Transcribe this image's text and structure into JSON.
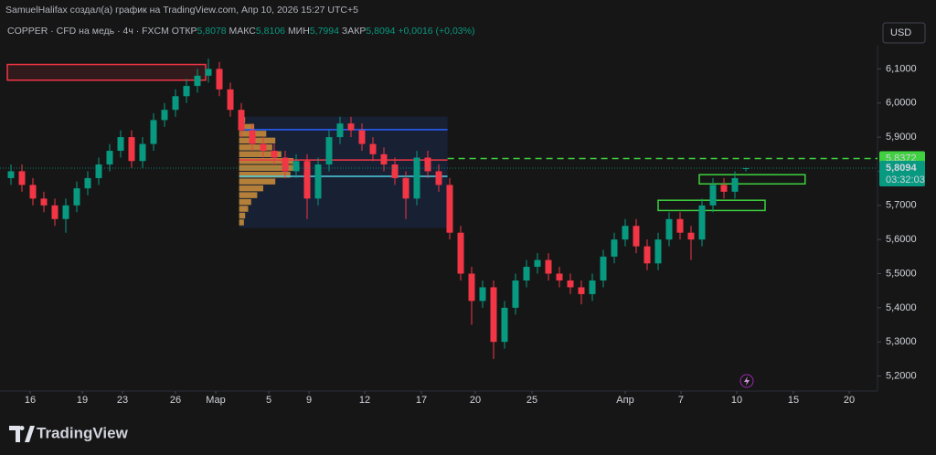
{
  "header": {
    "attribution": "SamuelHalifax создал(а) график на TradingView.com, Апр 10, 2026 15:27 UTC+5",
    "symbol": "COPPER · CFD на медь · 4ч · FXCM",
    "open_label": "ОТКР",
    "open": "5,8078",
    "high_label": "МАКС",
    "high": "5,8106",
    "low_label": "МИН",
    "low": "5,7994",
    "close_label": "ЗАКР",
    "close": "5,8094",
    "change": "+0,0016 (+0,03%)"
  },
  "currency": "USD",
  "brand": "TradingView",
  "chart_data": {
    "type": "candlestick",
    "xlim": [
      0,
      80
    ],
    "xticks": [
      {
        "value": 2.75,
        "label": "16"
      },
      {
        "value": 7.5,
        "label": "19"
      },
      {
        "value": 11.17,
        "label": "23"
      },
      {
        "value": 16,
        "label": "26"
      },
      {
        "value": 19.67,
        "label": "Мар"
      },
      {
        "value": 24.5,
        "label": "5"
      },
      {
        "value": 28.17,
        "label": "9"
      },
      {
        "value": 33.25,
        "label": "12"
      },
      {
        "value": 38.42,
        "label": "17"
      },
      {
        "value": 43.33,
        "label": "20"
      },
      {
        "value": 48.5,
        "label": "25"
      },
      {
        "value": 57,
        "label": "Апр"
      },
      {
        "value": 62.08,
        "label": "7"
      },
      {
        "value": 67.17,
        "label": "10"
      },
      {
        "value": 72.33,
        "label": "15"
      },
      {
        "value": 77.42,
        "label": "20"
      }
    ],
    "ylim": [
      5.156,
      6.168
    ],
    "yticks": [
      {
        "value": 5.2,
        "label": "5,2000"
      },
      {
        "value": 5.3,
        "label": "5,3000"
      },
      {
        "value": 5.4,
        "label": "5,4000"
      },
      {
        "value": 5.5,
        "label": "5,5000"
      },
      {
        "value": 5.6,
        "label": "5,6000"
      },
      {
        "value": 5.7,
        "label": "5,7000"
      },
      {
        "value": 5.8,
        "label": "5,8000"
      },
      {
        "value": 5.9,
        "label": "5,9000"
      },
      {
        "value": 6.0,
        "label": "6,0000"
      },
      {
        "value": 6.1,
        "label": "6,1000"
      }
    ],
    "x": [
      1,
      2,
      3,
      4,
      5,
      6,
      7,
      8,
      9,
      10,
      11,
      12,
      13,
      14,
      15,
      16,
      17,
      18,
      19,
      20,
      21,
      22,
      23,
      24,
      25,
      26,
      27,
      28,
      29,
      30,
      31,
      32,
      33,
      34,
      35,
      36,
      37,
      38,
      39,
      40,
      41,
      42,
      43,
      44,
      45,
      46,
      47,
      48,
      49,
      50,
      51,
      52,
      53,
      54,
      55,
      56,
      57,
      58,
      59,
      60,
      61,
      62,
      63,
      64,
      65,
      66,
      67,
      68
    ],
    "open": [
      5.78,
      5.8,
      5.76,
      5.72,
      5.7,
      5.66,
      5.7,
      5.75,
      5.78,
      5.82,
      5.86,
      5.9,
      5.83,
      5.88,
      5.95,
      5.98,
      6.02,
      6.05,
      6.08,
      6.1,
      6.04,
      5.98,
      5.92,
      5.88,
      5.86,
      5.84,
      5.8,
      5.83,
      5.72,
      5.82,
      5.9,
      5.94,
      5.92,
      5.88,
      5.85,
      5.82,
      5.78,
      5.72,
      5.84,
      5.8,
      5.76,
      5.62,
      5.5,
      5.42,
      5.46,
      5.3,
      5.4,
      5.48,
      5.52,
      5.54,
      5.5,
      5.48,
      5.46,
      5.44,
      5.48,
      5.55,
      5.6,
      5.64,
      5.58,
      5.53,
      5.6,
      5.66,
      5.62,
      5.6,
      5.7,
      5.76,
      5.74,
      5.8078
    ],
    "high": [
      5.82,
      5.82,
      5.78,
      5.74,
      5.72,
      5.72,
      5.77,
      5.8,
      5.84,
      5.88,
      5.92,
      5.92,
      5.9,
      5.97,
      6.0,
      6.04,
      6.07,
      6.1,
      6.13,
      6.12,
      6.06,
      6.0,
      5.94,
      5.9,
      5.88,
      5.86,
      5.85,
      5.85,
      5.84,
      5.92,
      5.96,
      5.96,
      5.94,
      5.9,
      5.87,
      5.84,
      5.8,
      5.86,
      5.86,
      5.82,
      5.78,
      5.64,
      5.52,
      5.48,
      5.48,
      5.42,
      5.5,
      5.54,
      5.56,
      5.56,
      5.52,
      5.5,
      5.48,
      5.5,
      5.57,
      5.62,
      5.66,
      5.66,
      5.6,
      5.62,
      5.68,
      5.68,
      5.64,
      5.72,
      5.78,
      5.78,
      5.8,
      5.8106
    ],
    "low": [
      5.76,
      5.74,
      5.7,
      5.68,
      5.64,
      5.62,
      5.68,
      5.73,
      5.76,
      5.8,
      5.84,
      5.81,
      5.81,
      5.86,
      5.93,
      5.96,
      6.0,
      6.03,
      6.06,
      6.02,
      5.96,
      5.9,
      5.86,
      5.84,
      5.82,
      5.78,
      5.78,
      5.66,
      5.7,
      5.8,
      5.88,
      5.9,
      5.86,
      5.83,
      5.8,
      5.76,
      5.66,
      5.7,
      5.78,
      5.74,
      5.6,
      5.48,
      5.35,
      5.4,
      5.25,
      5.28,
      5.38,
      5.46,
      5.5,
      5.48,
      5.46,
      5.44,
      5.41,
      5.42,
      5.46,
      5.53,
      5.58,
      5.56,
      5.51,
      5.51,
      5.58,
      5.6,
      5.54,
      5.58,
      5.68,
      5.72,
      5.72,
      5.7994
    ],
    "close": [
      5.8,
      5.76,
      5.72,
      5.7,
      5.66,
      5.7,
      5.75,
      5.78,
      5.82,
      5.86,
      5.9,
      5.83,
      5.88,
      5.95,
      5.98,
      6.02,
      6.05,
      6.08,
      6.1,
      6.04,
      5.98,
      5.92,
      5.88,
      5.86,
      5.84,
      5.8,
      5.83,
      5.72,
      5.82,
      5.9,
      5.94,
      5.92,
      5.88,
      5.85,
      5.82,
      5.78,
      5.72,
      5.84,
      5.8,
      5.76,
      5.62,
      5.5,
      5.42,
      5.46,
      5.3,
      5.4,
      5.48,
      5.52,
      5.54,
      5.5,
      5.48,
      5.46,
      5.44,
      5.48,
      5.55,
      5.6,
      5.64,
      5.58,
      5.53,
      5.6,
      5.66,
      5.62,
      5.6,
      5.7,
      5.76,
      5.74,
      5.78,
      5.8094
    ],
    "up_color": "#089981",
    "down_color": "#f23645",
    "last_price": {
      "value": 5.8094,
      "label": "5,8094",
      "countdown": "03:32:03",
      "color": "#089981"
    },
    "alert_line": {
      "value": 5.8372,
      "label": "5,8372",
      "from": 40.8,
      "color": "#3fd13f"
    },
    "zones": [
      {
        "x": [
          0.67,
          18.75
        ],
        "y": [
          6.067,
          6.113
        ],
        "color": "#f23645",
        "fill": "rgba(242,54,69,0.12)"
      },
      {
        "x": [
          21.8,
          40.8
        ],
        "y": [
          5.634,
          5.96
        ],
        "color": "rgba(41,98,255,0.0)",
        "fill": "rgba(41,98,255,0.13)"
      },
      {
        "x": [
          63.75,
          73.4
        ],
        "y": [
          5.763,
          5.79
        ],
        "color": "#3fd13f",
        "fill": "rgba(0,0,0,0)"
      },
      {
        "x": [
          60,
          69.75
        ],
        "y": [
          5.685,
          5.715
        ],
        "color": "#3fd13f",
        "fill": "rgba(0,0,0,0)"
      }
    ],
    "levels": [
      {
        "value": 5.922,
        "x": [
          21.8,
          40.8
        ],
        "color": "#2962ff"
      },
      {
        "value": 5.833,
        "x": [
          21.8,
          40.8
        ],
        "color": "#f23645"
      },
      {
        "value": 5.785,
        "x": [
          21.8,
          40.8
        ],
        "color": "#4dd0e1"
      }
    ],
    "profile": {
      "start": 21.8,
      "prices": [
        5.95,
        5.93,
        5.91,
        5.89,
        5.87,
        5.85,
        5.83,
        5.81,
        5.79,
        5.77,
        5.75,
        5.73,
        5.71,
        5.69,
        5.67,
        5.65
      ],
      "values": [
        10,
        25,
        45,
        60,
        55,
        70,
        90,
        100,
        85,
        60,
        40,
        30,
        20,
        15,
        10,
        8
      ],
      "color": "rgba(247,170,60,0.7)"
    }
  }
}
